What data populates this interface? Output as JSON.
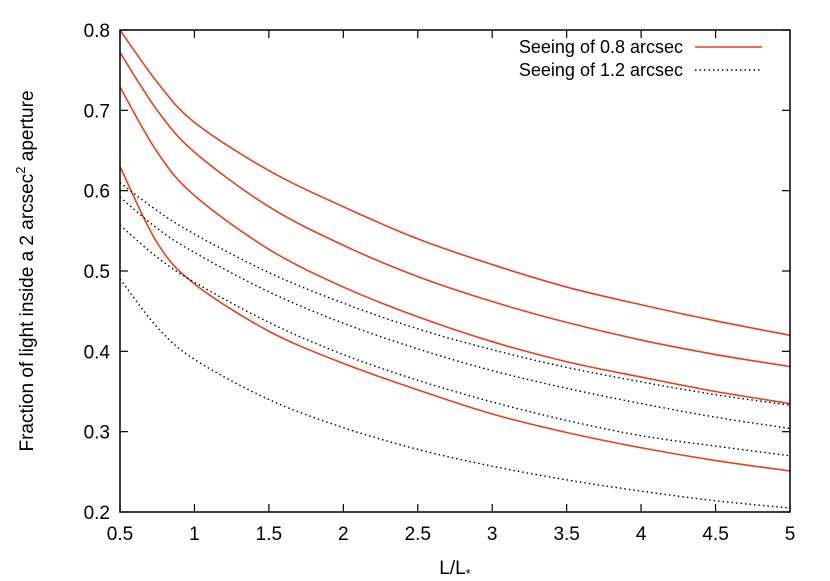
{
  "chart_data": {
    "type": "line",
    "title": "",
    "xlabel": "L/L",
    "xlabel_subscript": "*",
    "ylabel": "Fraction of light inside a 2 arcsec",
    "ylabel_superscript": "2",
    "ylabel_suffix": " aperture",
    "xlim": [
      0.5,
      5
    ],
    "ylim": [
      0.2,
      0.8
    ],
    "xticks": [
      0.5,
      1,
      1.5,
      2,
      2.5,
      3,
      3.5,
      4,
      4.5,
      5
    ],
    "xtick_labels": [
      "0.5",
      "1",
      "1.5",
      "2",
      "2.5",
      "3",
      "3.5",
      "4",
      "4.5",
      "5"
    ],
    "yticks": [
      0.2,
      0.3,
      0.4,
      0.5,
      0.6,
      0.7,
      0.8
    ],
    "ytick_labels": [
      "0.2",
      "0.3",
      "0.4",
      "0.5",
      "0.6",
      "0.7",
      "0.8"
    ],
    "grid": false,
    "legend_position": "top-right",
    "legend": [
      {
        "label": "Seeing of 0.8 arcsec",
        "color": "#e8401c",
        "style": "solid"
      },
      {
        "label": "Seeing of 1.2 arcsec",
        "color": "#000000",
        "style": "dotted"
      }
    ],
    "x": [
      0.5,
      0.75,
      1,
      1.5,
      2,
      2.5,
      3,
      3.5,
      4,
      4.5,
      5
    ],
    "series": [
      {
        "group": "Seeing of 0.8 arcsec",
        "values": [
          0.8,
          0.735,
          0.685,
          0.625,
          0.58,
          0.54,
          0.508,
          0.48,
          0.458,
          0.438,
          0.42
        ],
        "color": "#e8401c",
        "style": "solid"
      },
      {
        "group": "Seeing of 0.8 arcsec",
        "values": [
          0.772,
          0.7,
          0.648,
          0.58,
          0.532,
          0.493,
          0.462,
          0.436,
          0.414,
          0.396,
          0.381
        ],
        "color": "#e8401c",
        "style": "solid"
      },
      {
        "group": "Seeing of 0.8 arcsec",
        "values": [
          0.729,
          0.648,
          0.594,
          0.527,
          0.48,
          0.443,
          0.412,
          0.387,
          0.368,
          0.35,
          0.335
        ],
        "color": "#e8401c",
        "style": "solid"
      },
      {
        "group": "Seeing of 0.8 arcsec",
        "values": [
          0.63,
          0.535,
          0.484,
          0.425,
          0.385,
          0.352,
          0.322,
          0.299,
          0.28,
          0.264,
          0.251
        ],
        "color": "#e8401c",
        "style": "solid"
      },
      {
        "group": "Seeing of 1.2 arcsec",
        "values": [
          0.61,
          0.575,
          0.546,
          0.498,
          0.46,
          0.428,
          0.402,
          0.38,
          0.362,
          0.346,
          0.333
        ],
        "color": "#000000",
        "style": "dotted"
      },
      {
        "group": "Seeing of 1.2 arcsec",
        "values": [
          0.592,
          0.553,
          0.523,
          0.474,
          0.435,
          0.403,
          0.376,
          0.354,
          0.335,
          0.318,
          0.304
        ],
        "color": "#000000",
        "style": "dotted"
      },
      {
        "group": "Seeing of 1.2 arcsec",
        "values": [
          0.557,
          0.517,
          0.486,
          0.436,
          0.396,
          0.364,
          0.337,
          0.314,
          0.295,
          0.282,
          0.27
        ],
        "color": "#000000",
        "style": "dotted"
      },
      {
        "group": "Seeing of 1.2 arcsec",
        "values": [
          0.49,
          0.43,
          0.39,
          0.34,
          0.305,
          0.278,
          0.257,
          0.24,
          0.226,
          0.214,
          0.205
        ],
        "color": "#000000",
        "style": "dotted"
      }
    ]
  }
}
